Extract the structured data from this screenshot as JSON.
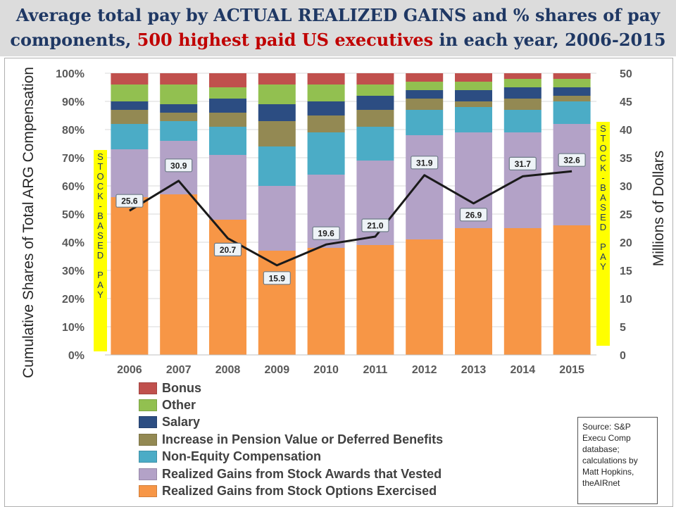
{
  "title": {
    "line1": "Average total pay by ACTUAL REALIZED GAINS and % shares of pay",
    "line2_pre": "components, ",
    "line2_highlight": "500 highest paid US executives",
    "line2_post": " in each year, 2006-2015"
  },
  "stock_band_text": "S\nT\nO\nC\nK\n-\nB\nA\nS\nE\nD\n\nP\nA\nY",
  "source_note": "Source: S&P\nExecu Comp\ndatabase;\ncalculations by\nMatt Hopkins,\ntheAIRnet",
  "colors": {
    "title": "#1f3864",
    "title_highlight": "#c00000",
    "line": "#1a1a1a",
    "stock_band": "#ffff00"
  },
  "chart_data": {
    "type": "bar",
    "stacked": true,
    "categories": [
      "2006",
      "2007",
      "2008",
      "2009",
      "2010",
      "2011",
      "2012",
      "2013",
      "2014",
      "2015"
    ],
    "ylabel": "Cumulative Shares of Total ARG Compensation",
    "ylim": [
      0,
      100
    ],
    "yticks": [
      "0%",
      "10%",
      "20%",
      "30%",
      "40%",
      "50%",
      "60%",
      "70%",
      "80%",
      "90%",
      "100%"
    ],
    "y2label": "Millions of Dollars",
    "y2lim": [
      0,
      50
    ],
    "y2ticks": [
      "0",
      "5",
      "10",
      "15",
      "20",
      "25",
      "30",
      "35",
      "40",
      "45",
      "50"
    ],
    "grid": true,
    "legend_position": "bottom",
    "series": [
      {
        "name": "Realized Gains from Stock Options Exercised",
        "color": "#f79646",
        "values": [
          56,
          57,
          48,
          37,
          38,
          39,
          41,
          45,
          45,
          46
        ]
      },
      {
        "name": "Realized Gains from Stock Awards that Vested",
        "color": "#b3a2c7",
        "values": [
          17,
          19,
          23,
          23,
          26,
          30,
          37,
          34,
          34,
          36
        ]
      },
      {
        "name": "Non-Equity Compensation",
        "color": "#4bacc6",
        "values": [
          9,
          7,
          10,
          14,
          15,
          12,
          9,
          9,
          8,
          8
        ]
      },
      {
        "name": "Increase in Pension Value or Deferred Benefits",
        "color": "#938953",
        "values": [
          5,
          3,
          5,
          9,
          6,
          6,
          4,
          2,
          4,
          2
        ]
      },
      {
        "name": "Salary",
        "color": "#2c4d82",
        "values": [
          3,
          3,
          5,
          6,
          5,
          5,
          3,
          4,
          4,
          3
        ]
      },
      {
        "name": "Other",
        "color": "#92c050",
        "values": [
          6,
          7,
          4,
          7,
          6,
          4,
          3,
          3,
          3,
          3
        ]
      },
      {
        "name": "Bonus",
        "color": "#c0504d",
        "values": [
          4,
          4,
          5,
          4,
          4,
          4,
          3,
          3,
          2,
          2
        ]
      }
    ],
    "line_series": {
      "axis": "secondary",
      "values": [
        25.6,
        30.9,
        20.7,
        15.9,
        19.6,
        21.0,
        31.9,
        26.9,
        31.7,
        32.6
      ],
      "labels": [
        "25.6",
        "30.9",
        "20.7",
        "15.9",
        "19.6",
        "21.0",
        "31.9",
        "26.9",
        "31.7",
        "32.6"
      ]
    }
  }
}
